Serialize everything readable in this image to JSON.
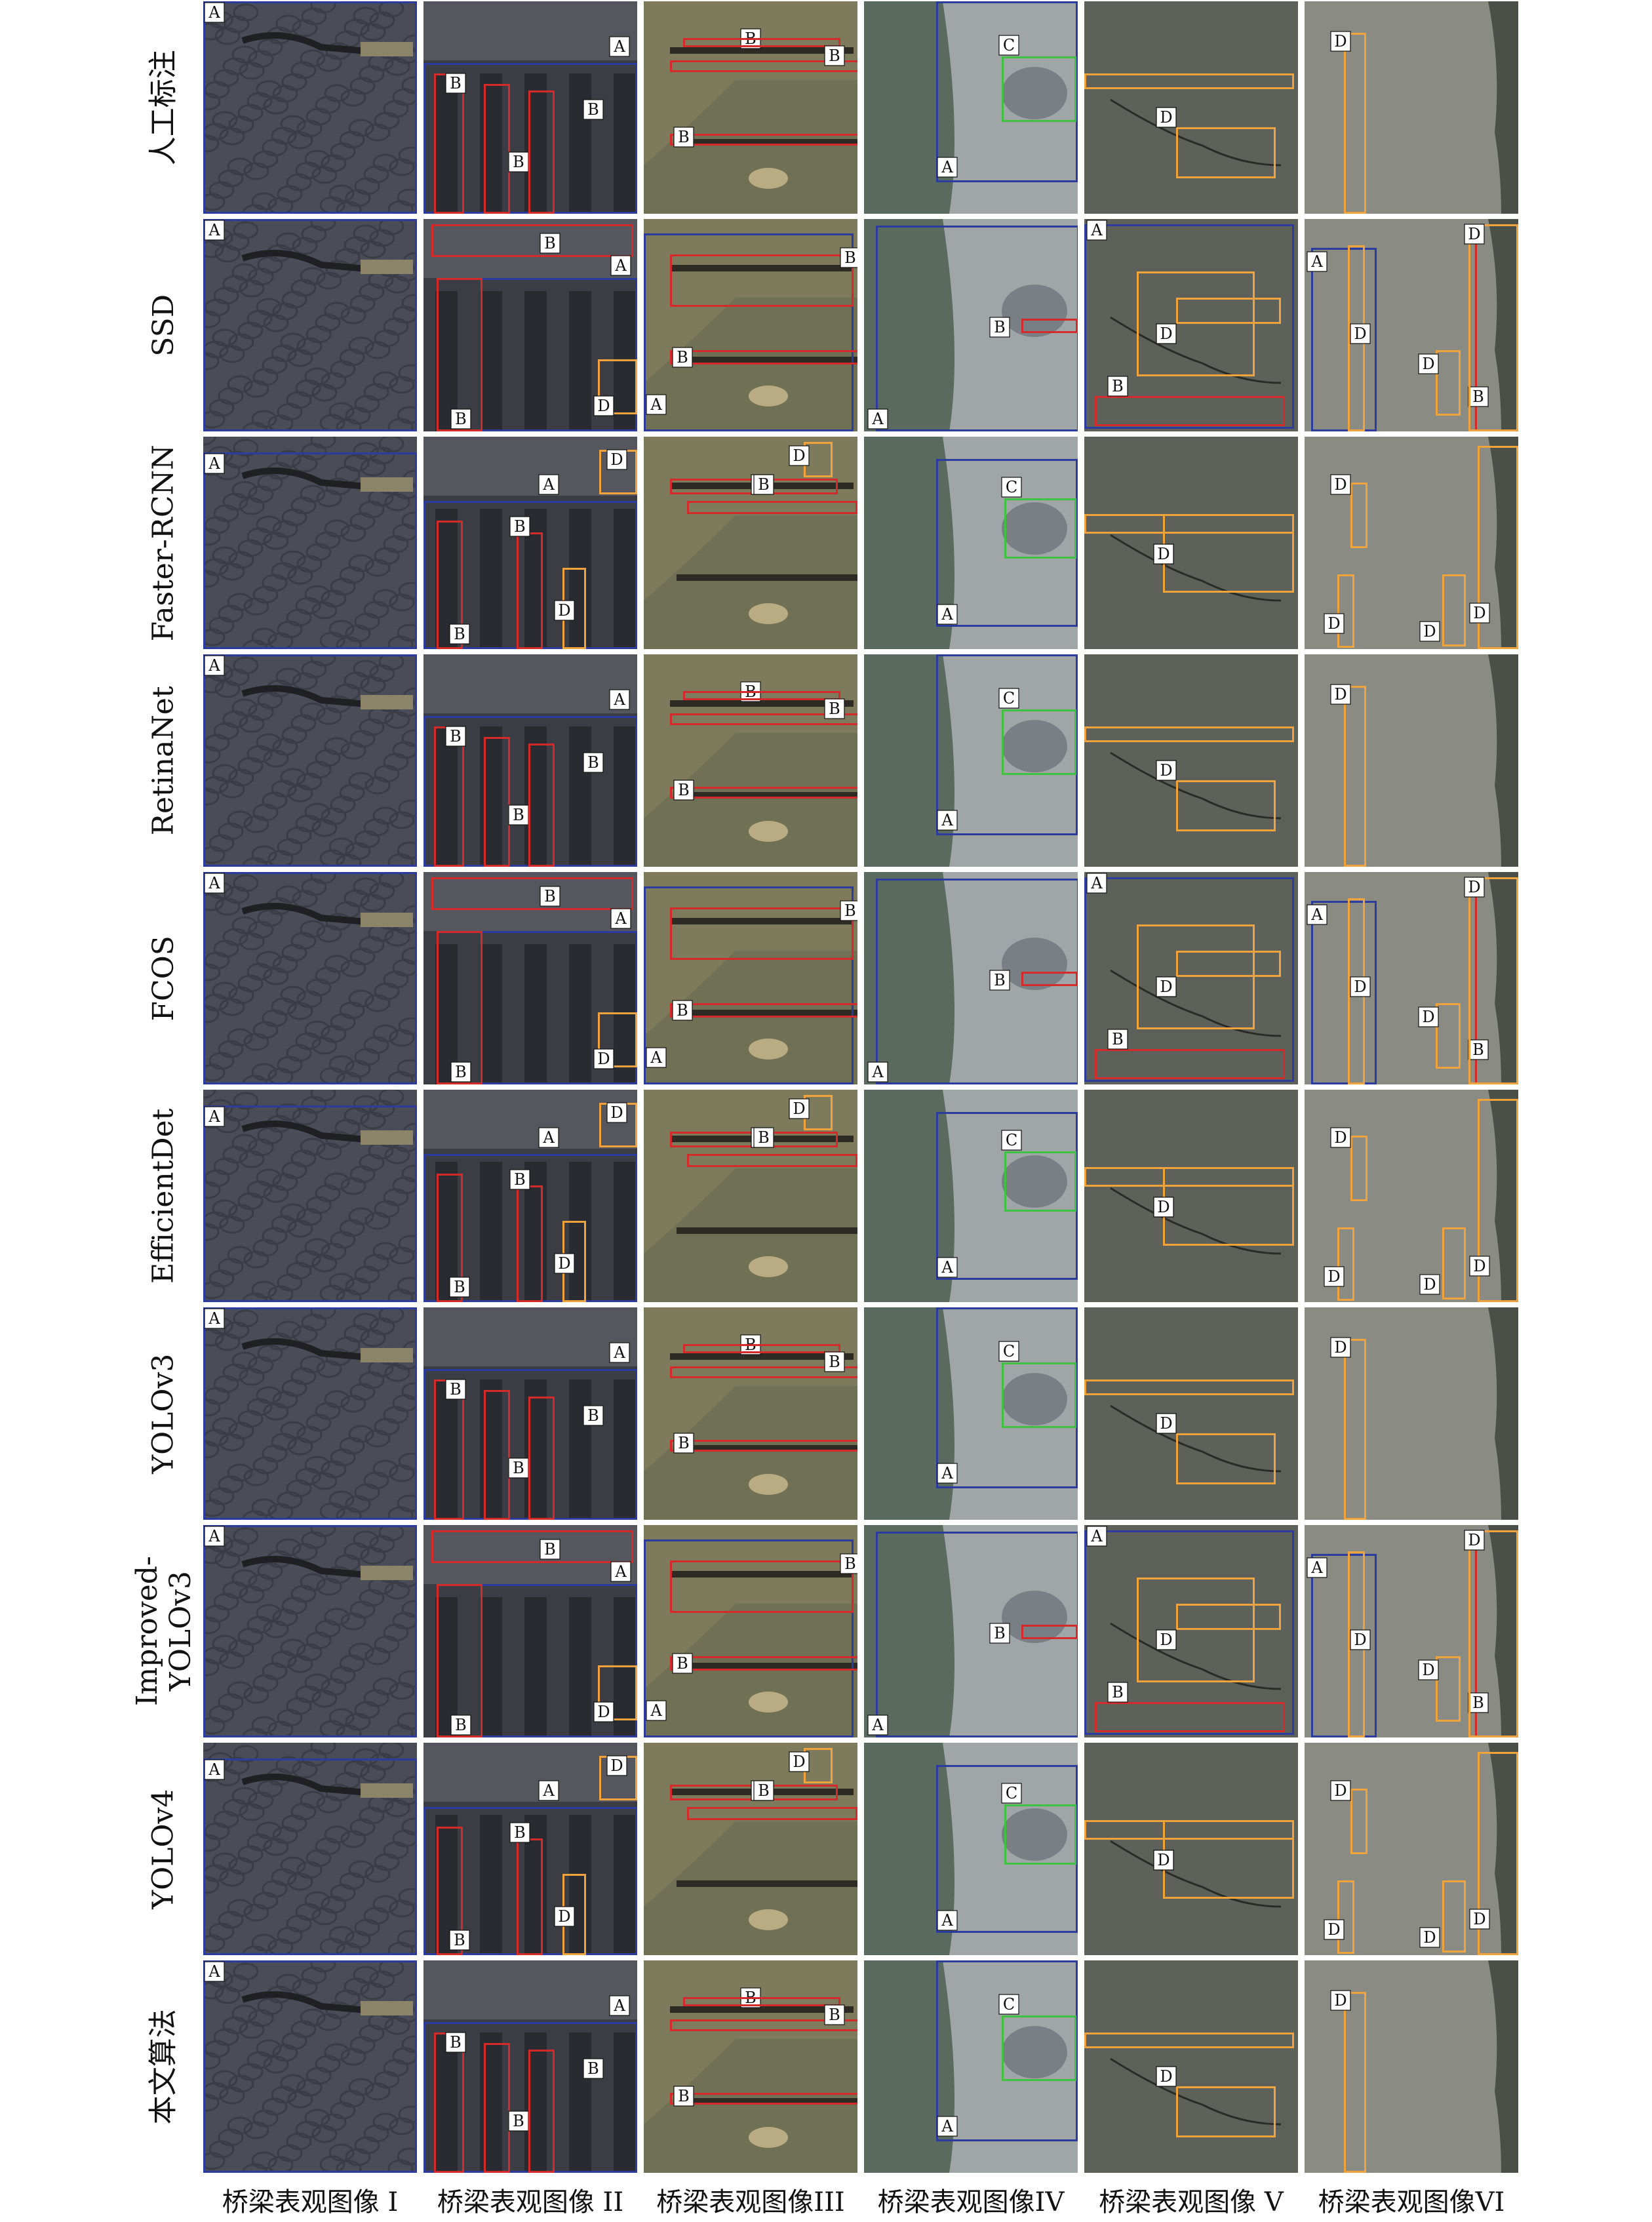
{
  "row_labels": [
    "人工标注",
    "SSD",
    "Faster-RCNN",
    "RetinaNet",
    "FCOS",
    "EfficientDet",
    "YOLOv3",
    "Improved-YOLOv3",
    "YOLOv4",
    "本文算法"
  ],
  "column_labels": [
    "桥梁表观图像 I",
    "桥梁表观图像 II",
    "桥梁表观图像III",
    "桥梁表观图像IV",
    "桥梁表观图像 V",
    "桥梁表观图像VI"
  ],
  "box_classes": {
    "A": {
      "color": "#2b3c9e"
    },
    "B": {
      "color": "#d42a2a"
    },
    "C": {
      "color": "#3fc23f"
    },
    "D": {
      "color": "#f0a23c"
    }
  },
  "panel_backgrounds": [
    "#4a4d58",
    "#3b3c44",
    "#6f7054",
    "#5a6a5e",
    "#5e615a",
    "#8a8c84"
  ]
}
